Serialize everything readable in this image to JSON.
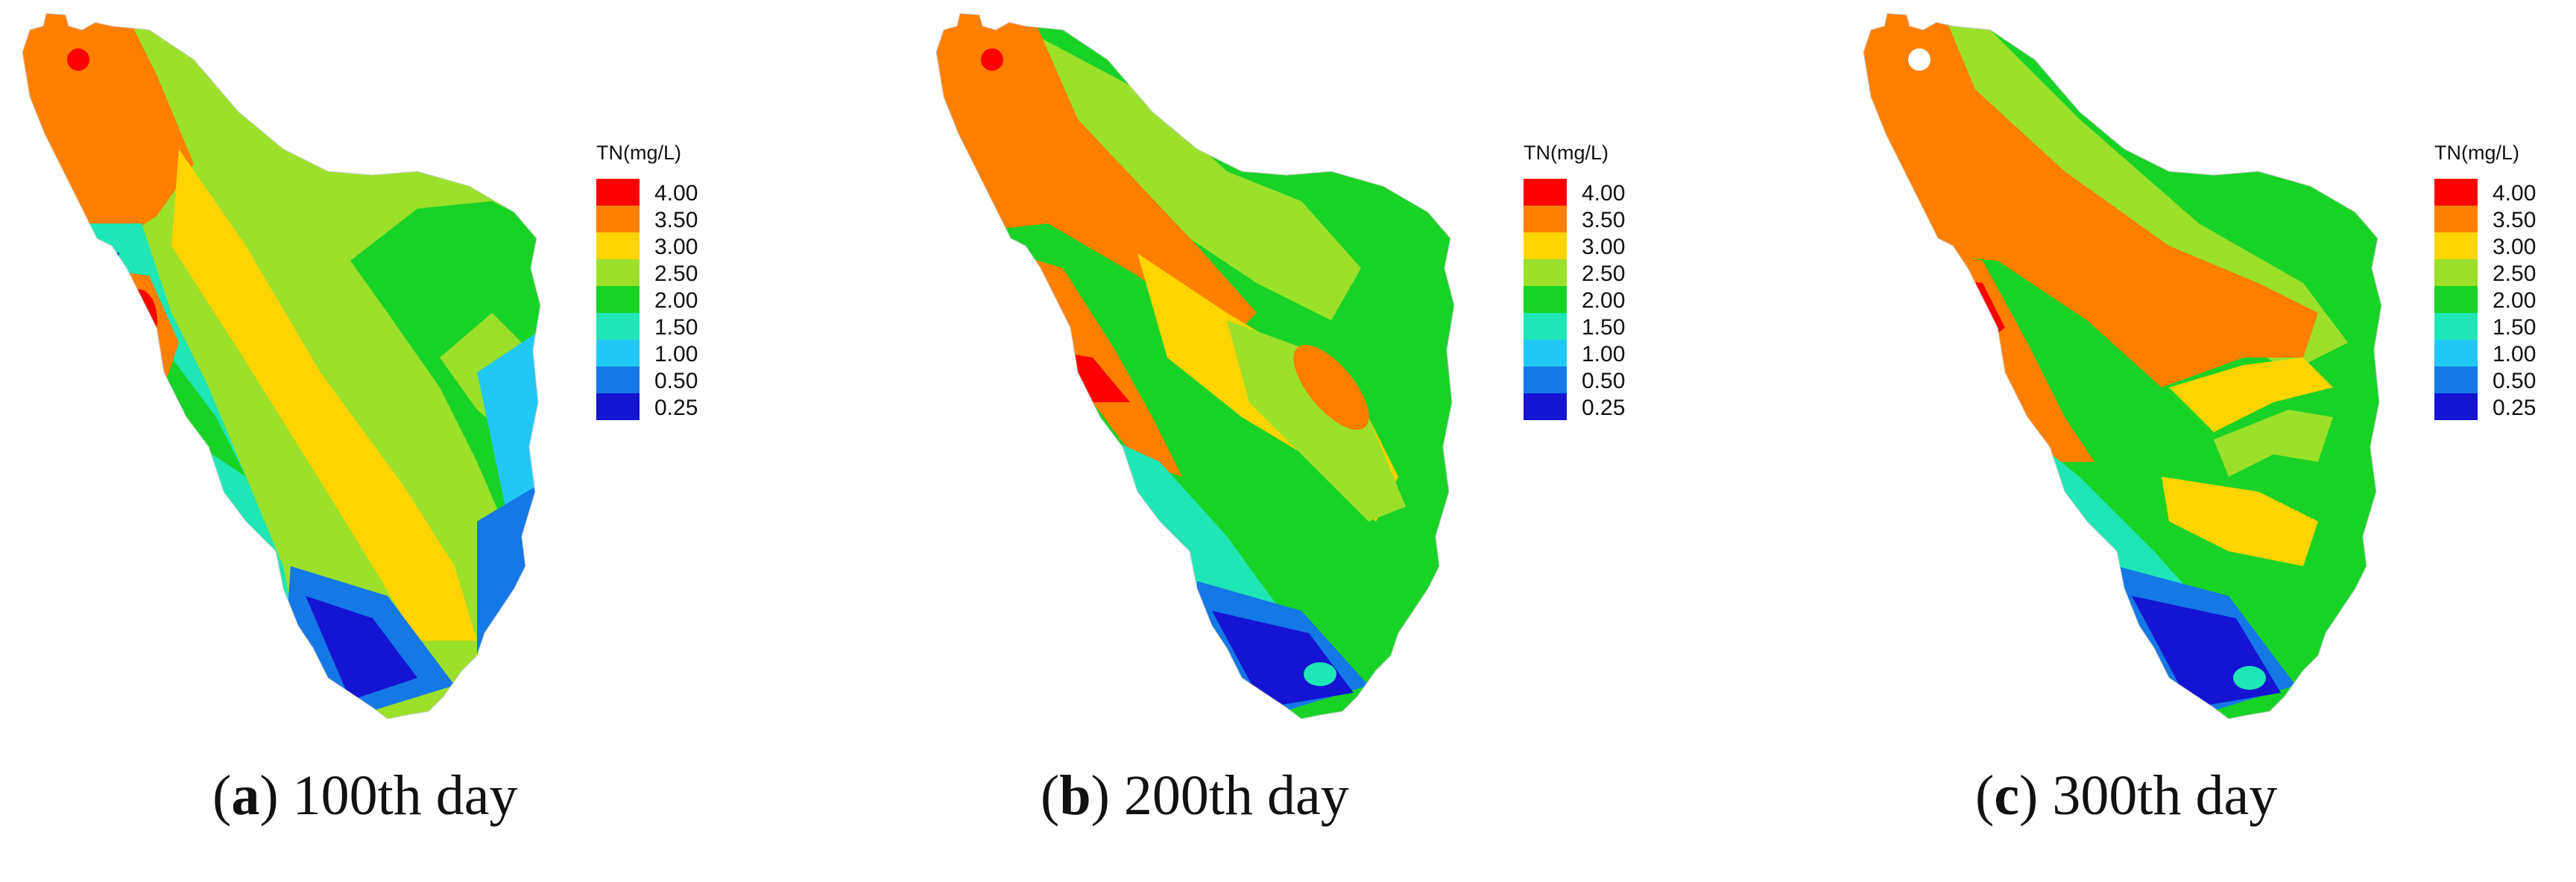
{
  "legend": {
    "title": "TN(mg/L)",
    "levels": [
      {
        "label": "4.00",
        "color": "#ff0000"
      },
      {
        "label": "3.50",
        "color": "#ff7f00"
      },
      {
        "label": "3.00",
        "color": "#ffd400"
      },
      {
        "label": "2.50",
        "color": "#9be02a"
      },
      {
        "label": "2.00",
        "color": "#19d226"
      },
      {
        "label": "1.50",
        "color": "#1ee6b4"
      },
      {
        "label": "1.00",
        "color": "#22c8f5"
      },
      {
        "label": "0.50",
        "color": "#1478e6"
      },
      {
        "label": "0.25",
        "color": "#1414d2"
      }
    ]
  },
  "panels": [
    {
      "letter": "a",
      "caption": "100th day"
    },
    {
      "letter": "b",
      "caption": "200th day"
    },
    {
      "letter": "c",
      "caption": "300th day"
    }
  ]
}
